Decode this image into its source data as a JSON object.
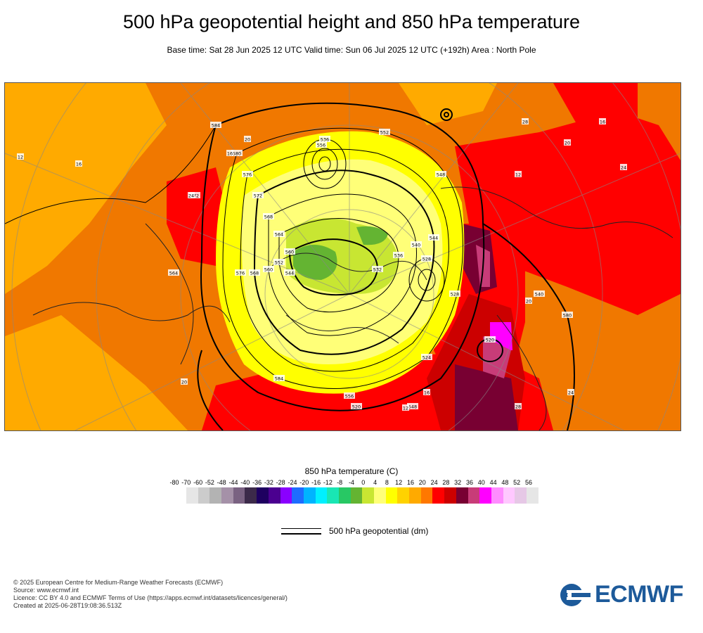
{
  "header": {
    "title": "500 hPa geopotential height and 850 hPa temperature",
    "subtitle": "Base time: Sat 28 Jun 2025 12 UTC Valid time: Sun 06 Jul 2025 12 UTC (+192h) Area : North Pole"
  },
  "legend": {
    "title": "850 hPa temperature (C)",
    "ticks": [
      "-80",
      "-70",
      "-60",
      "-52",
      "-48",
      "-44",
      "-40",
      "-36",
      "-32",
      "-28",
      "-24",
      "-20",
      "-16",
      "-12",
      "-8",
      "-4",
      "0",
      "4",
      "8",
      "12",
      "16",
      "20",
      "24",
      "28",
      "32",
      "36",
      "40",
      "44",
      "48",
      "52",
      "56"
    ],
    "colors": [
      "#e6e6e6",
      "#cccccc",
      "#b3b3b3",
      "#a591a8",
      "#7a6282",
      "#3c2a4a",
      "#1e0060",
      "#4b0090",
      "#8a00ff",
      "#1e6cff",
      "#00b4ff",
      "#00f0ff",
      "#19e6b4",
      "#28c864",
      "#64b432",
      "#c8e632",
      "#ffff78",
      "#ffff00",
      "#ffd200",
      "#ffaa00",
      "#ff7800",
      "#ff0000",
      "#cc0000",
      "#780032",
      "#c83c78",
      "#ff00ff",
      "#ff8cff",
      "#ffc8ff",
      "#e6c8e6",
      "#e6e6e6"
    ],
    "geo_label": "500 hPa geopotential (dm)"
  },
  "map": {
    "contour_labels": [
      "584",
      "580",
      "576",
      "572",
      "568",
      "564",
      "560",
      "556",
      "552",
      "548",
      "544",
      "540",
      "536",
      "532",
      "528",
      "524",
      "520",
      "584",
      "576",
      "568",
      "560",
      "552",
      "544",
      "536",
      "528",
      "520",
      "580",
      "572",
      "564",
      "556",
      "548",
      "540"
    ],
    "temperature_labels": [
      "12",
      "16",
      "20",
      "24",
      "28",
      "16",
      "20",
      "12",
      "24",
      "20",
      "16",
      "12",
      "28",
      "24",
      "20",
      "16"
    ]
  },
  "footer": {
    "copyright": "© 2025 European Centre for Medium-Range Weather Forecasts (ECMWF)",
    "source": "Source: www.ecmwf.int",
    "licence": "Licence: CC BY 4.0 and ECMWF Terms of Use (https://apps.ecmwf.int/datasets/licences/general/)",
    "created": "Created at 2025-06-28T19:08:36.513Z"
  },
  "logo": {
    "text": "ECMWF",
    "color": "#1d5a9a"
  }
}
